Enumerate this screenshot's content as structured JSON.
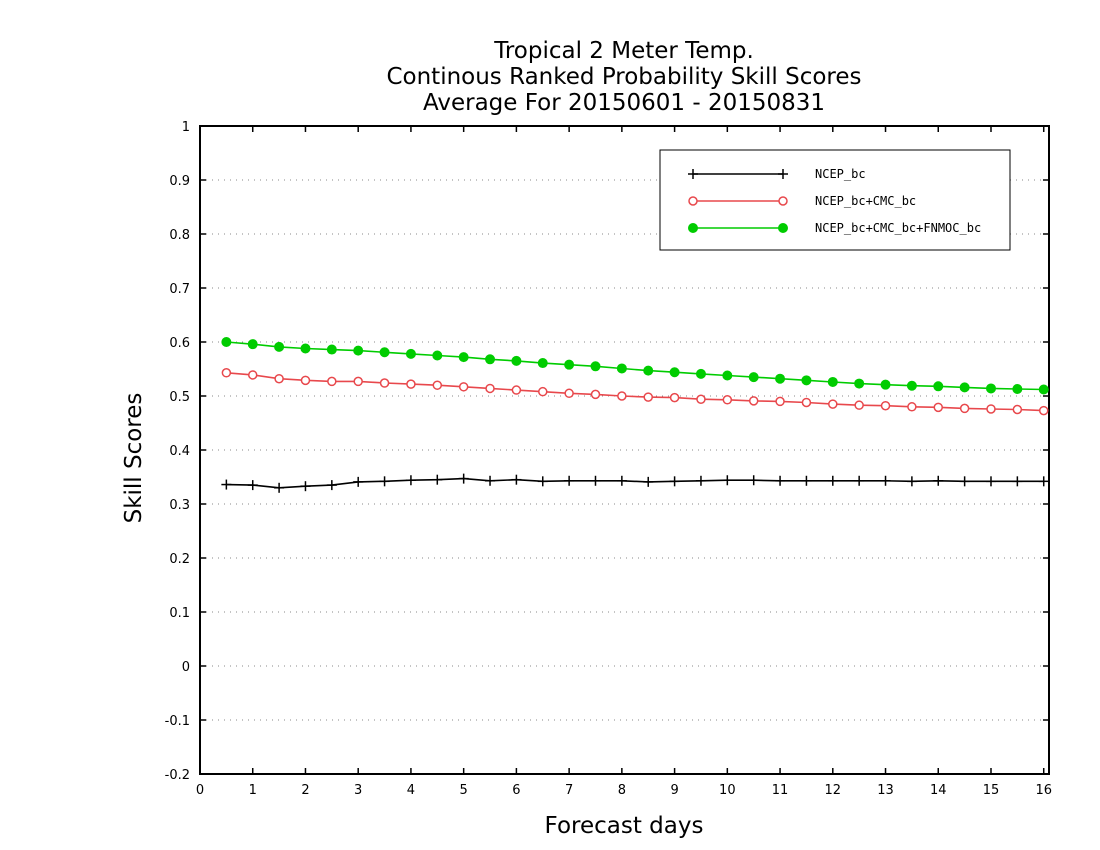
{
  "chart_data": {
    "type": "line",
    "title": [
      "Tropical 2 Meter Temp.",
      "Continous Ranked Probability Skill Scores",
      "Average For 20150601 - 20150831"
    ],
    "xlabel": "Forecast days",
    "ylabel": "Skill Scores",
    "xlim": [
      0,
      16.1
    ],
    "ylim": [
      -0.2,
      1
    ],
    "xticks": [
      0,
      1,
      2,
      3,
      4,
      5,
      6,
      7,
      8,
      9,
      10,
      11,
      12,
      13,
      14,
      15,
      16
    ],
    "yticks": [
      -0.2,
      -0.1,
      0,
      0.1,
      0.2,
      0.3,
      0.4,
      0.5,
      0.6,
      0.7,
      0.8,
      0.9,
      1
    ],
    "ytick_labels": [
      "-0.2",
      "-0.1",
      "0",
      "0.1",
      "0.2",
      "0.3",
      "0.4",
      "0.5",
      "0.6",
      "0.7",
      "0.8",
      "0.9",
      "1"
    ],
    "grid": "horizontal dotted",
    "legend_position": "top-right",
    "x": [
      0.5,
      1,
      1.5,
      2,
      2.5,
      3,
      3.5,
      4,
      4.5,
      5,
      5.5,
      6,
      6.5,
      7,
      7.5,
      8,
      8.5,
      9,
      9.5,
      10,
      10.5,
      11,
      11.5,
      12,
      12.5,
      13,
      13.5,
      14,
      14.5,
      15,
      15.5,
      16
    ],
    "series": [
      {
        "name": "NCEP_bc",
        "color": "#000000",
        "marker": "plus",
        "values": [
          0.336,
          0.335,
          0.33,
          0.333,
          0.335,
          0.341,
          0.342,
          0.344,
          0.345,
          0.347,
          0.343,
          0.345,
          0.342,
          0.343,
          0.343,
          0.343,
          0.341,
          0.342,
          0.343,
          0.344,
          0.344,
          0.343,
          0.343,
          0.343,
          0.343,
          0.343,
          0.342,
          0.343,
          0.342,
          0.342,
          0.342,
          0.342
        ]
      },
      {
        "name": "NCEP_bc+CMC_bc",
        "color": "#e8484c",
        "marker": "open-circle",
        "values": [
          0.543,
          0.539,
          0.532,
          0.529,
          0.527,
          0.527,
          0.524,
          0.522,
          0.52,
          0.517,
          0.514,
          0.511,
          0.508,
          0.505,
          0.503,
          0.5,
          0.498,
          0.497,
          0.494,
          0.493,
          0.491,
          0.49,
          0.488,
          0.485,
          0.483,
          0.482,
          0.48,
          0.479,
          0.477,
          0.476,
          0.475,
          0.473
        ]
      },
      {
        "name": "NCEP_bc+CMC_bc+FNMOC_bc",
        "color": "#00cc00",
        "marker": "filled-circle",
        "values": [
          0.6,
          0.596,
          0.591,
          0.588,
          0.586,
          0.584,
          0.581,
          0.578,
          0.575,
          0.572,
          0.568,
          0.565,
          0.561,
          0.558,
          0.555,
          0.551,
          0.547,
          0.544,
          0.541,
          0.538,
          0.535,
          0.532,
          0.529,
          0.526,
          0.523,
          0.521,
          0.519,
          0.518,
          0.516,
          0.514,
          0.513,
          0.512
        ]
      }
    ]
  }
}
